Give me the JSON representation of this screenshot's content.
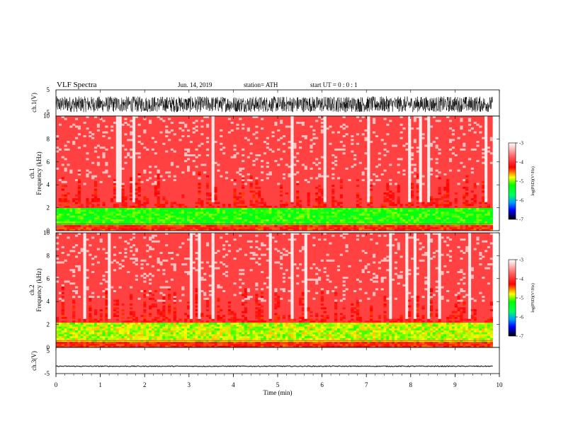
{
  "header": {
    "title": "VLF  Spectra",
    "date": "Jun. 14, 2019",
    "station": "station= ATH",
    "start_ut": "start  UT  =    0  : 0  : 1"
  },
  "chart_data": [
    {
      "type": "line",
      "id": "ch1-waveform",
      "ylabel": "ch.1(V)",
      "ylim": [
        -5,
        5
      ],
      "y_ticks": [
        "5",
        "-5"
      ],
      "x_range_min": [
        0,
        9.85
      ],
      "amplitude_range_V": [
        -3.5,
        2.5
      ]
    },
    {
      "type": "heatmap",
      "id": "ch1-spectrogram",
      "ylabel": [
        "ch.1",
        "Frequency  (kHz)"
      ],
      "ylim": [
        0,
        10
      ],
      "y_ticks": [
        "0",
        "2",
        "4",
        "6",
        "8",
        "10"
      ],
      "x_range_min": [
        0,
        9.85
      ],
      "colorbar": {
        "label": "log(PSD)(V²/Hz)",
        "ticks": [
          "-3",
          "-4",
          "-5",
          "-6",
          "-7"
        ],
        "range": [
          -7,
          -3
        ]
      },
      "band_kHz": [
        0.5,
        2.0
      ],
      "band_level": -5.2,
      "background_level": -3.9
    },
    {
      "type": "heatmap",
      "id": "ch2-spectrogram",
      "ylabel": [
        "ch.2",
        "Frequency  (kHz)"
      ],
      "ylim": [
        0,
        10
      ],
      "y_ticks": [
        "0",
        "2",
        "4",
        "6",
        "8",
        "10"
      ],
      "x_range_min": [
        0,
        9.85
      ],
      "colorbar": {
        "label": "log(PSD)(V²/Hz)",
        "ticks": [
          "-3",
          "-4",
          "-5",
          "-6",
          "-7"
        ],
        "range": [
          -7,
          -3
        ]
      },
      "band_kHz": [
        0.5,
        2.2
      ],
      "band_level": -4.9,
      "background_level": -3.9
    },
    {
      "type": "line",
      "id": "ch3-waveform",
      "ylabel": "ch.3(V)",
      "ylim": [
        -5,
        5
      ],
      "y_ticks": [
        "5",
        "-5"
      ],
      "x_range_min": [
        0,
        9.85
      ],
      "baseline_V": -2.2
    }
  ],
  "x_axis": {
    "label": "Time  (min)",
    "ticks": [
      "0",
      "1",
      "2",
      "3",
      "4",
      "5",
      "6",
      "7",
      "8",
      "9",
      "10"
    ],
    "range": [
      0,
      10
    ]
  },
  "colors": {
    "colormap": [
      "#000000",
      "#0000ff",
      "#00ff00",
      "#ffff00",
      "#ff0000",
      "#ffffff"
    ]
  }
}
